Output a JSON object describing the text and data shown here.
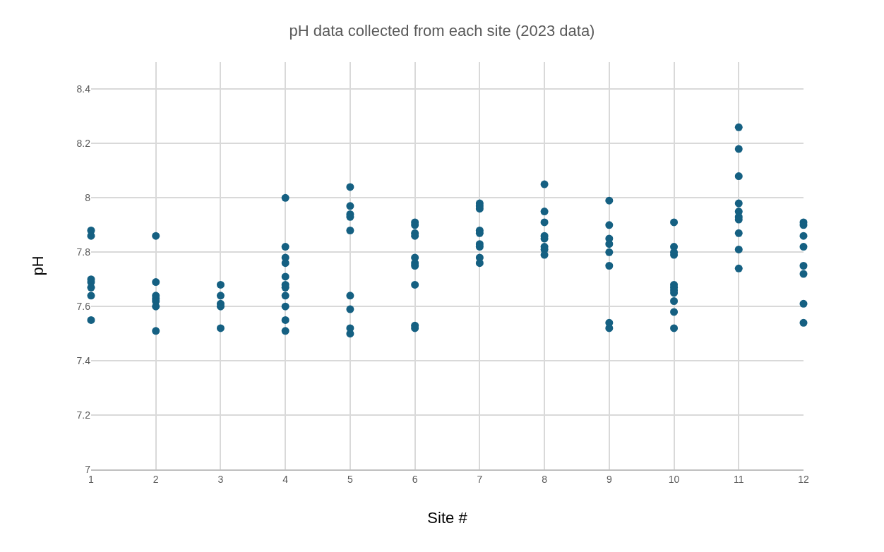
{
  "chart_data": {
    "type": "scatter",
    "title": "pH data collected from each site (2023 data)",
    "xlabel": "Site #",
    "ylabel": "pH",
    "xlim": [
      1,
      12
    ],
    "xticks": [
      1,
      2,
      3,
      4,
      5,
      6,
      7,
      8,
      9,
      10,
      11,
      12
    ],
    "ylim": [
      7,
      8.5
    ],
    "yticks": [
      7,
      7.2,
      7.4,
      7.6,
      7.8,
      8,
      8.2,
      8.4
    ],
    "grid": true,
    "marker": "circle",
    "series": [
      {
        "color": "#156082",
        "x": [
          1,
          1,
          1,
          1,
          1,
          1,
          1,
          2,
          2,
          2,
          2,
          2,
          2,
          2,
          3,
          3,
          3,
          3,
          3,
          4,
          4,
          4,
          4,
          4,
          4,
          4,
          4,
          4,
          4,
          4,
          5,
          5,
          5,
          5,
          5,
          5,
          5,
          5,
          5,
          6,
          6,
          6,
          6,
          6,
          6,
          6,
          6,
          6,
          6,
          7,
          7,
          7,
          7,
          7,
          7,
          7,
          7,
          7,
          8,
          8,
          8,
          8,
          8,
          8,
          8,
          8,
          9,
          9,
          9,
          9,
          9,
          9,
          9,
          9,
          10,
          10,
          10,
          10,
          10,
          10,
          10,
          10,
          10,
          10,
          10,
          11,
          11,
          11,
          11,
          11,
          11,
          11,
          11,
          11,
          11,
          12,
          12,
          12,
          12,
          12,
          12,
          12,
          12
        ],
        "values": [
          7.88,
          7.86,
          7.7,
          7.69,
          7.67,
          7.64,
          7.55,
          7.86,
          7.69,
          7.64,
          7.63,
          7.62,
          7.6,
          7.51,
          7.68,
          7.64,
          7.61,
          7.6,
          7.52,
          8.0,
          7.82,
          7.78,
          7.76,
          7.71,
          7.68,
          7.67,
          7.64,
          7.6,
          7.55,
          7.51,
          8.04,
          7.97,
          7.94,
          7.93,
          7.88,
          7.64,
          7.59,
          7.52,
          7.5,
          7.91,
          7.9,
          7.87,
          7.86,
          7.78,
          7.76,
          7.75,
          7.68,
          7.53,
          7.52,
          7.98,
          7.97,
          7.96,
          7.88,
          7.87,
          7.83,
          7.82,
          7.78,
          7.76,
          8.05,
          7.95,
          7.91,
          7.86,
          7.85,
          7.82,
          7.81,
          7.79,
          7.99,
          7.9,
          7.85,
          7.83,
          7.8,
          7.75,
          7.54,
          7.52,
          7.91,
          7.82,
          7.8,
          7.79,
          7.68,
          7.67,
          7.66,
          7.65,
          7.62,
          7.58,
          7.52,
          8.26,
          8.18,
          8.08,
          7.98,
          7.95,
          7.93,
          7.92,
          7.87,
          7.81,
          7.74,
          7.91,
          7.9,
          7.86,
          7.82,
          7.75,
          7.72,
          7.61,
          7.54
        ]
      }
    ]
  }
}
